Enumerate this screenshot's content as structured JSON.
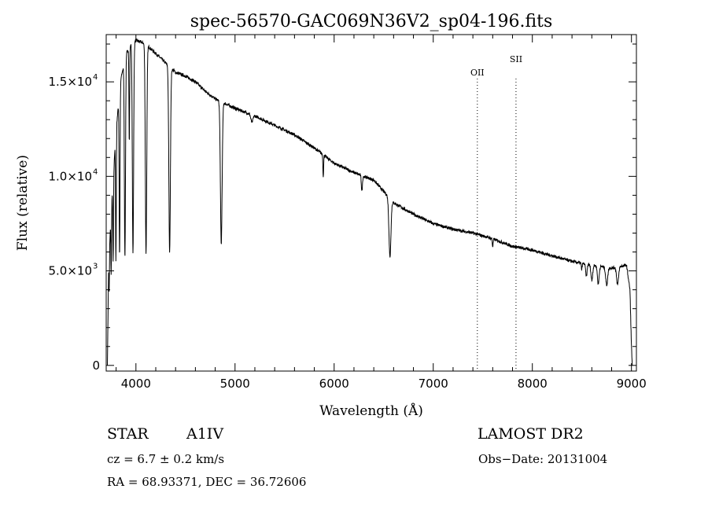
{
  "chart_data": {
    "type": "line",
    "title": "spec-56570-GAC069N36V2_sp04-196.fits",
    "xlabel": "Wavelength (Å)",
    "ylabel": "Flux (relative)",
    "xlim": [
      3700,
      9050
    ],
    "ylim": [
      -300,
      17500
    ],
    "x_ticks": [
      4000,
      5000,
      6000,
      7000,
      8000,
      9000
    ],
    "x_tick_labels": [
      "4000",
      "5000",
      "6000",
      "7000",
      "8000",
      "9000"
    ],
    "y_ticks": [
      0,
      5000,
      10000,
      15000
    ],
    "y_tick_labels": [
      "0",
      "5.0×10",
      "1.0×10",
      "1.5×10"
    ],
    "y_tick_exponents": [
      "",
      "3",
      "4",
      "4"
    ],
    "grid": false,
    "continuum": [
      [
        3712,
        0
      ],
      [
        3725,
        5500
      ],
      [
        3760,
        9000
      ],
      [
        3800,
        12500
      ],
      [
        3850,
        15200
      ],
      [
        3900,
        16500
      ],
      [
        3950,
        17000
      ],
      [
        4000,
        17200
      ],
      [
        4100,
        17000
      ],
      [
        4200,
        16500
      ],
      [
        4300,
        16000
      ],
      [
        4400,
        15500
      ],
      [
        4500,
        15300
      ],
      [
        4600,
        15000
      ],
      [
        4700,
        14500
      ],
      [
        4800,
        14100
      ],
      [
        4900,
        13850
      ],
      [
        5000,
        13600
      ],
      [
        5200,
        13200
      ],
      [
        5400,
        12700
      ],
      [
        5600,
        12200
      ],
      [
        5800,
        11500
      ],
      [
        6000,
        10700
      ],
      [
        6200,
        10200
      ],
      [
        6400,
        9800
      ],
      [
        6600,
        8600
      ],
      [
        6800,
        8000
      ],
      [
        7000,
        7500
      ],
      [
        7200,
        7200
      ],
      [
        7400,
        7000
      ],
      [
        7600,
        6700
      ],
      [
        7800,
        6300
      ],
      [
        8000,
        6100
      ],
      [
        8200,
        5800
      ],
      [
        8400,
        5500
      ],
      [
        8600,
        5300
      ],
      [
        8800,
        5150
      ],
      [
        8950,
        5300
      ],
      [
        8985,
        4000
      ],
      [
        9000,
        1000
      ],
      [
        9008,
        0
      ]
    ],
    "absorption_lines": [
      {
        "center": 3730,
        "depth": 0.35,
        "width": 4
      },
      {
        "center": 3750,
        "depth": 0.4,
        "width": 4
      },
      {
        "center": 3770,
        "depth": 0.45,
        "width": 5
      },
      {
        "center": 3798,
        "depth": 0.55,
        "width": 5
      },
      {
        "center": 3835,
        "depth": 0.6,
        "width": 6
      },
      {
        "center": 3889,
        "depth": 0.65,
        "width": 8
      },
      {
        "center": 3933,
        "depth": 0.3,
        "width": 5
      },
      {
        "center": 3970,
        "depth": 0.65,
        "width": 9
      },
      {
        "center": 4102,
        "depth": 0.65,
        "width": 10
      },
      {
        "center": 4340,
        "depth": 0.62,
        "width": 11
      },
      {
        "center": 4861,
        "depth": 0.54,
        "width": 12
      },
      {
        "center": 5170,
        "depth": 0.03,
        "width": 15
      },
      {
        "center": 5890,
        "depth": 0.1,
        "width": 5
      },
      {
        "center": 6280,
        "depth": 0.08,
        "width": 8
      },
      {
        "center": 6563,
        "depth": 0.35,
        "width": 14
      },
      {
        "center": 7600,
        "depth": 0.06,
        "width": 6
      },
      {
        "center": 8498,
        "depth": 0.06,
        "width": 6
      },
      {
        "center": 8545,
        "depth": 0.12,
        "width": 10
      },
      {
        "center": 8600,
        "depth": 0.15,
        "width": 12
      },
      {
        "center": 8665,
        "depth": 0.18,
        "width": 12
      },
      {
        "center": 8750,
        "depth": 0.18,
        "width": 14
      },
      {
        "center": 8860,
        "depth": 0.18,
        "width": 14
      }
    ],
    "line_markers": [
      {
        "label": "OII",
        "wavelength": 7445
      },
      {
        "label": "SII",
        "wavelength": 7835
      }
    ]
  },
  "info": {
    "object_class": "STAR",
    "subclass": "A1IV",
    "survey": "LAMOST DR2",
    "cz": "cz = 6.7 ± 0.2 km/s",
    "obs_date": "Obs−Date: 20131004",
    "coords": "RA =  68.93371, DEC =  36.72606"
  }
}
